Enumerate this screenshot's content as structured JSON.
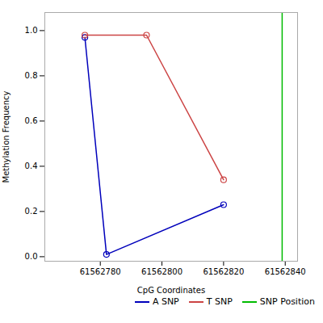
{
  "chart_data": {
    "type": "line",
    "xlabel": "CpG Coordinates",
    "ylabel": "Methylation Frequency",
    "series": [
      {
        "name": "A SNP",
        "color": "#0000bb",
        "marker": "circle",
        "x": [
          61562775,
          61562782,
          61562820
        ],
        "values": [
          0.97,
          0.01,
          0.23
        ]
      },
      {
        "name": "T SNP",
        "color": "#cc4444",
        "marker": "circle",
        "x": [
          61562775,
          61562795,
          61562820
        ],
        "values": [
          0.98,
          0.98,
          0.34
        ]
      },
      {
        "name": "SNP Position",
        "type": "vline",
        "color": "#00bb00",
        "x": [
          61562839
        ]
      }
    ],
    "xlim": [
      61562762,
      61562844
    ],
    "xticks": [
      61562780,
      61562800,
      61562820,
      61562840
    ],
    "ylim": [
      -0.02,
      1.08
    ],
    "yticks": [
      {
        "value": 0,
        "label": "0.0"
      },
      0.2,
      0.4,
      0.6,
      0.8,
      {
        "value": 1,
        "label": "1.0"
      }
    ],
    "grid": false,
    "legend": "right"
  }
}
